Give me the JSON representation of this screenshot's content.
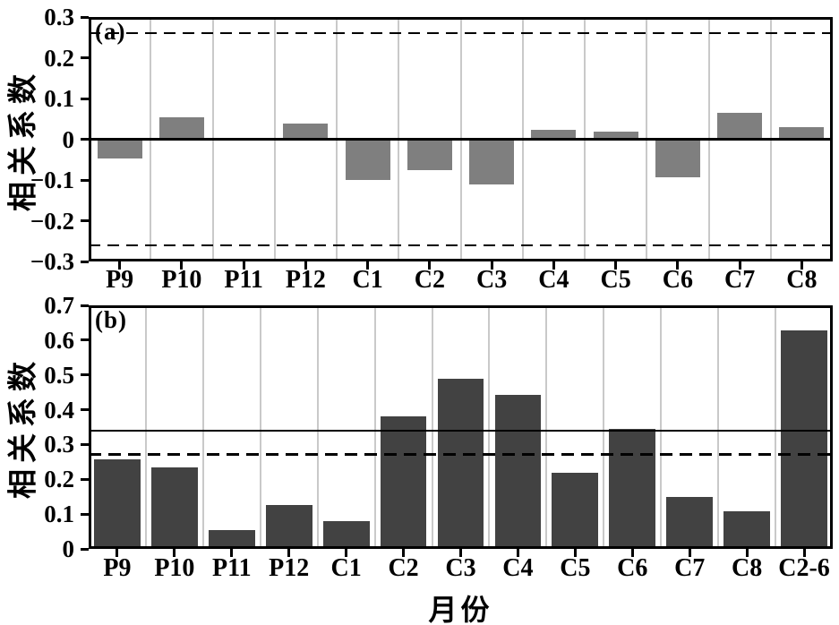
{
  "figure": {
    "xlabel": "月份",
    "background_color": "#ffffff",
    "gridline_color": "#c9c9c9",
    "axis_color": "#000000"
  },
  "chart_data": [
    {
      "type": "bar",
      "panel_label": "(a)",
      "ylabel": "相关系数",
      "categories": [
        "P9",
        "P10",
        "P11",
        "P12",
        "C1",
        "C2",
        "C3",
        "C4",
        "C5",
        "C6",
        "C7",
        "C8"
      ],
      "values": [
        -0.047,
        0.053,
        0.002,
        0.038,
        -0.1,
        -0.075,
        -0.11,
        0.024,
        0.018,
        -0.094,
        0.065,
        0.03
      ],
      "ylim": [
        -0.3,
        0.3
      ],
      "ytick_values": [
        0.3,
        0.2,
        0.1,
        0,
        -0.1,
        -0.2,
        -0.3
      ],
      "ytick_labels": [
        "0.3",
        "0.2",
        "0.1",
        "0",
        "−0.1",
        "−0.2",
        "−0.3"
      ],
      "ref_lines": [
        {
          "value": 0.261,
          "style": "dashed"
        },
        {
          "value": 0,
          "style": "solid"
        },
        {
          "value": -0.261,
          "style": "dashed"
        }
      ],
      "bar_color": "#7f7f7f",
      "grid": true,
      "legend": null
    },
    {
      "type": "bar",
      "panel_label": "(b)",
      "ylabel": "相关系数",
      "categories": [
        "P9",
        "P10",
        "P11",
        "P12",
        "C1",
        "C2",
        "C3",
        "C4",
        "C5",
        "C6",
        "C7",
        "C8",
        "C2-6"
      ],
      "values": [
        0.258,
        0.234,
        0.053,
        0.125,
        0.08,
        0.381,
        0.488,
        0.442,
        0.218,
        0.345,
        0.148,
        0.107,
        0.629
      ],
      "ylim": [
        0,
        0.7
      ],
      "ytick_values": [
        0.7,
        0.6,
        0.5,
        0.4,
        0.3,
        0.2,
        0.1,
        0
      ],
      "ytick_labels": [
        "0.7",
        "0.6",
        "0.5",
        "0.4",
        "0.3",
        "0.2",
        "0.1",
        "0"
      ],
      "ref_lines": [
        {
          "value": 0.34,
          "style": "solid"
        },
        {
          "value": 0.272,
          "style": "dashed"
        }
      ],
      "bar_color": "#424242",
      "grid": true,
      "legend": null
    }
  ]
}
